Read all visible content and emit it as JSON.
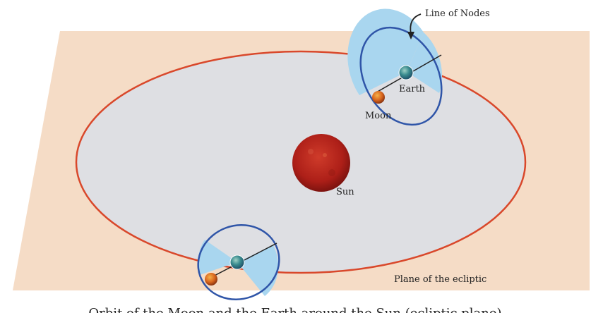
{
  "labels": {
    "line_of_nodes": "Line of Nodes",
    "earth": "Earth",
    "moon": "Moon",
    "sun": "Sun",
    "plane": "Plane of the ecliptic"
  },
  "caption": "Orbit of the Moon and the Earth around the Sun (ecliptic plane)",
  "colors": {
    "plane": "#f5dcc6",
    "orbit_fill": "#dedfe3",
    "orbit_stroke": "#d9482b",
    "moon_orbit": "#2f55a8",
    "moon_orbit_fill": "#a9d6ef",
    "sun": "#b3221c",
    "earth": "#2a7f86",
    "moon_body": "#d0661f"
  }
}
